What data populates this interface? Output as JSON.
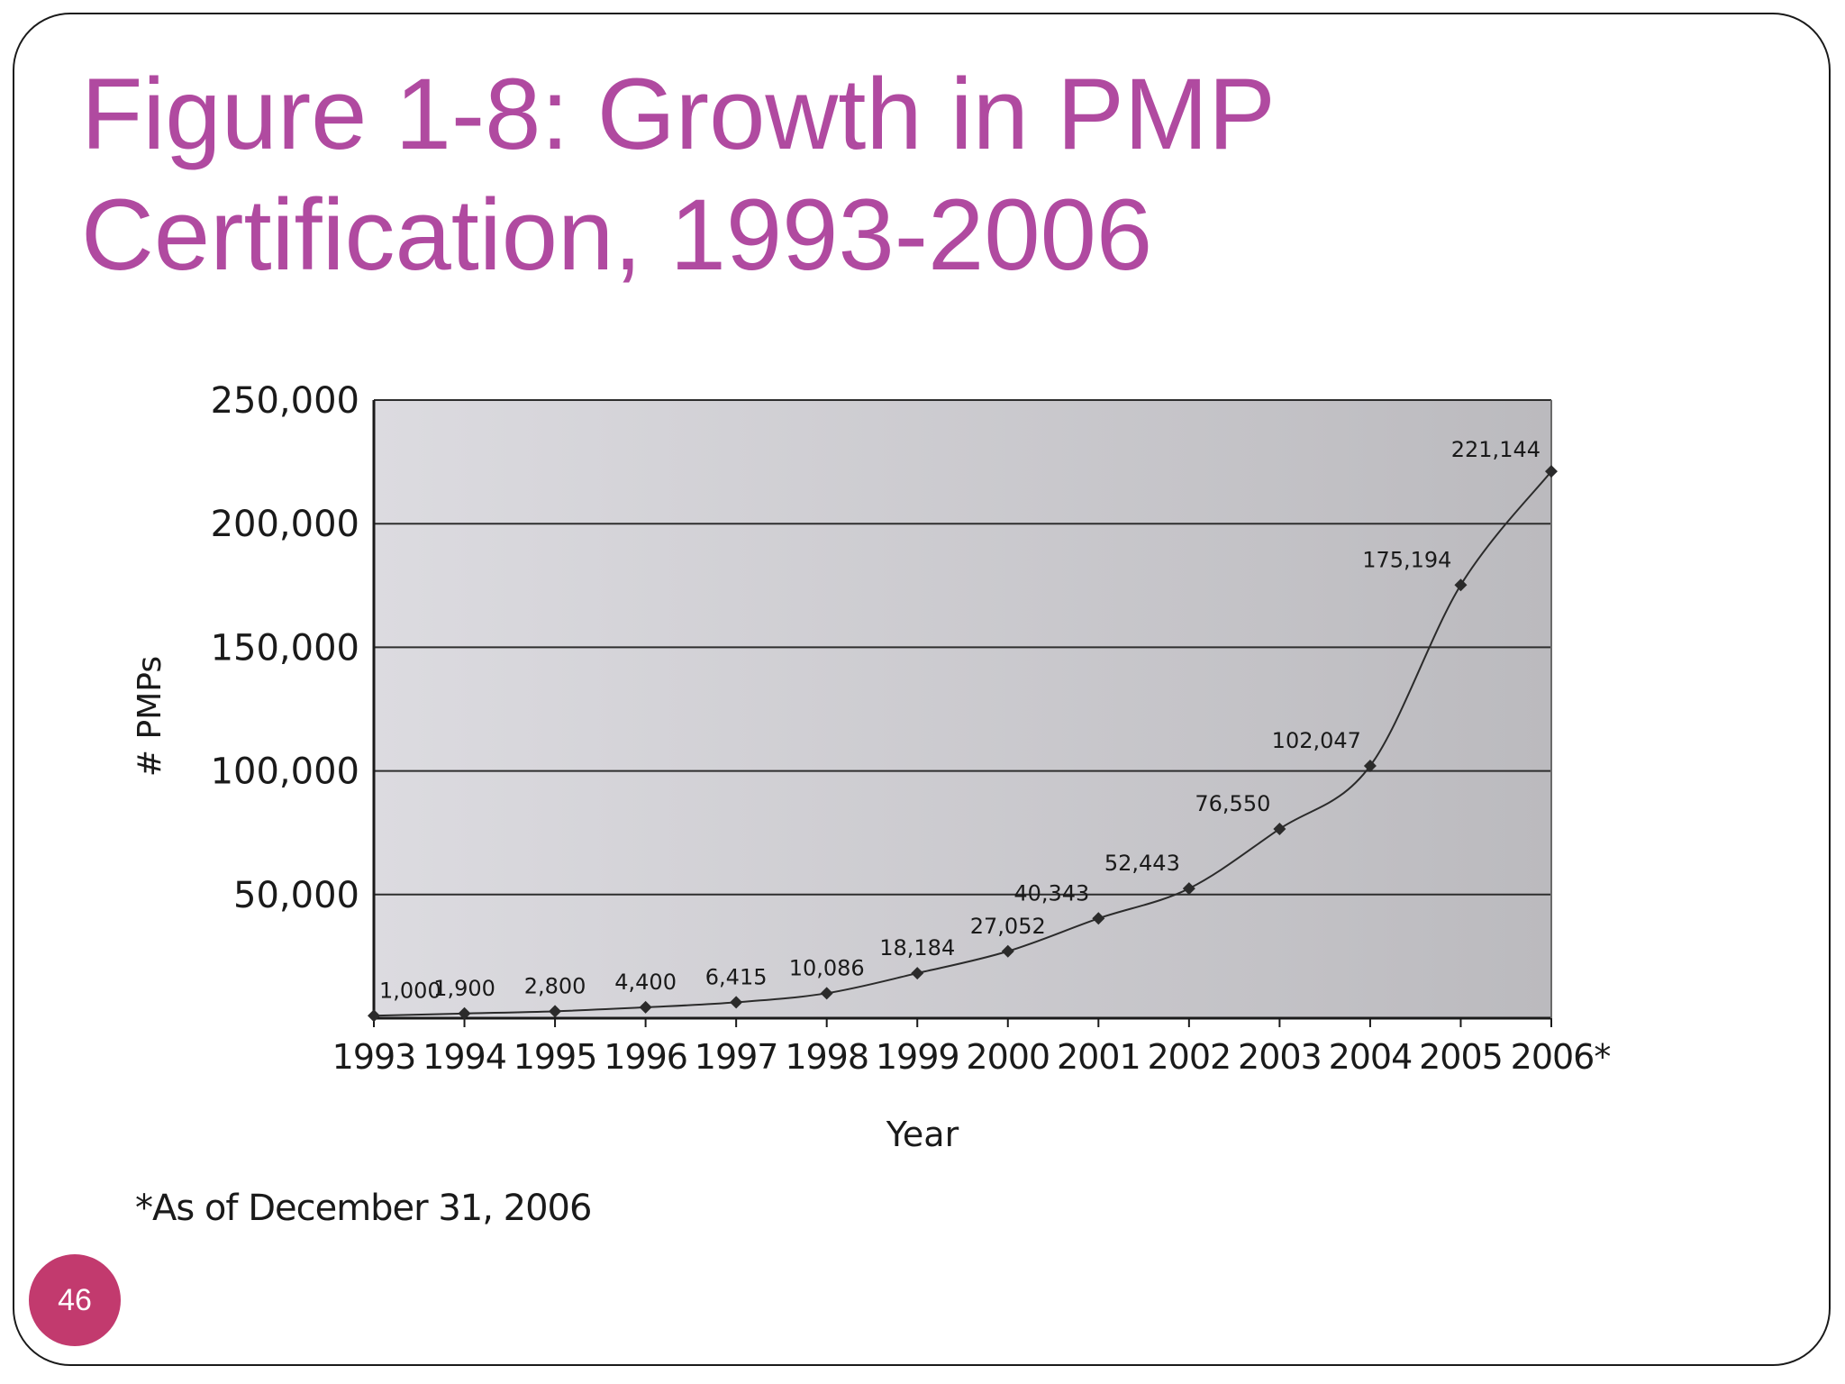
{
  "slide": {
    "title": "Figure 1-8: Growth in PMP Certification, 1993-2006",
    "footnote": "*As of December 31, 2006",
    "page_number": "46"
  },
  "colors": {
    "title": "#b04aa0",
    "badge": "#c23a6e",
    "plot_bg_light": "#dcdbe0",
    "plot_bg_dark": "#bbbabe"
  },
  "chart_data": {
    "type": "line",
    "title": "",
    "xlabel": "Year",
    "ylabel": "# PMPs",
    "categories": [
      "1993",
      "1994",
      "1995",
      "1996",
      "1997",
      "1998",
      "1999",
      "2000",
      "2001",
      "2002",
      "2003",
      "2004",
      "2005",
      "2006*"
    ],
    "series": [
      {
        "values": [
          1000,
          1900,
          2800,
          4400,
          6415,
          10086,
          18184,
          27052,
          40343,
          52443,
          76550,
          102047,
          175194,
          221144
        ],
        "data_labels": [
          "1,000",
          "1,900",
          "2,800",
          "4,400",
          "6,415",
          "10,086",
          "18,184",
          "27,052",
          "40,343",
          "52,443",
          "76,550",
          "102,047",
          "175,194",
          "221,144"
        ]
      }
    ],
    "ylim": [
      0,
      250000
    ],
    "yticks": [
      50000,
      100000,
      150000,
      200000,
      250000
    ],
    "ytick_labels": [
      "50,000",
      "100,000",
      "150,000",
      "200,000",
      "250,000"
    ],
    "grid": true,
    "legend": "none"
  }
}
